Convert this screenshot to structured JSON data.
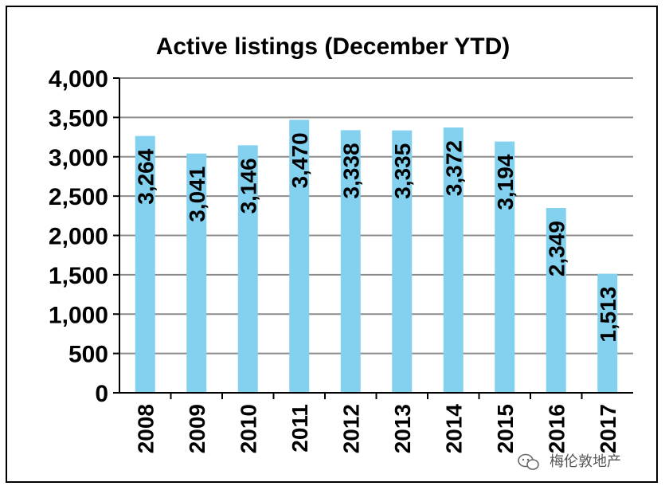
{
  "chart_data": {
    "type": "bar",
    "title": "Active listings (December YTD)",
    "categories": [
      "2008",
      "2009",
      "2010",
      "2011",
      "2012",
      "2013",
      "2014",
      "2015",
      "2016",
      "2017"
    ],
    "values": [
      3264,
      3041,
      3146,
      3470,
      3338,
      3335,
      3372,
      3194,
      2349,
      1513
    ],
    "value_labels": [
      "3,264",
      "3,041",
      "3,146",
      "3,470",
      "3,338",
      "3,335",
      "3,372",
      "3,194",
      "2,349",
      "1,513"
    ],
    "yticks": [
      "0",
      "500",
      "1,000",
      "1,500",
      "2,000",
      "2,500",
      "3,000",
      "3,500",
      "4,000"
    ],
    "ytick_values": [
      0,
      500,
      1000,
      1500,
      2000,
      2500,
      3000,
      3500,
      4000
    ],
    "ylim": [
      0,
      4000
    ],
    "xlabel": "",
    "ylabel": "",
    "grid": true,
    "bar_color": "#84D1EF",
    "grid_color": "#8C8C8C"
  },
  "watermark": {
    "text": "梅伦敦地产"
  }
}
